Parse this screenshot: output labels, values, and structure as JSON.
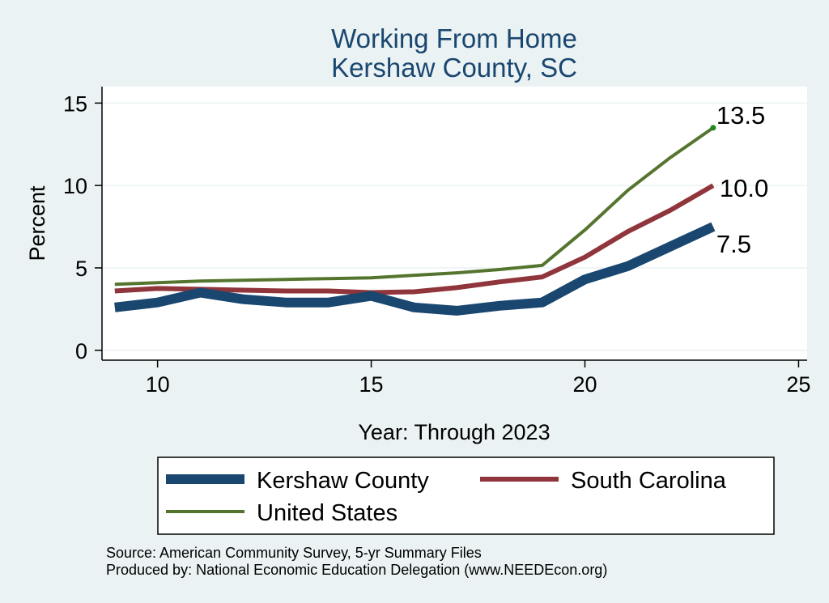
{
  "chart_data": {
    "type": "line",
    "title": "Working From Home",
    "subtitle": "Kershaw County, SC",
    "xlabel": "Year: Through 2023",
    "ylabel": "Percent",
    "xlim": [
      8.7,
      25.2
    ],
    "ylim": [
      -0.6,
      16
    ],
    "xticks": [
      10,
      15,
      20,
      25
    ],
    "yticks": [
      0,
      5,
      10,
      15
    ],
    "grid": true,
    "legend_position": "bottom",
    "x": [
      9,
      10,
      11,
      12,
      13,
      14,
      15,
      16,
      17,
      18,
      19,
      20,
      21,
      22,
      23
    ],
    "series": [
      {
        "name": "Kershaw County",
        "color": "#1a476f",
        "values": [
          2.6,
          2.9,
          3.5,
          3.1,
          2.9,
          2.9,
          3.3,
          2.6,
          2.4,
          2.7,
          2.9,
          4.3,
          5.1,
          6.3,
          7.5
        ],
        "end_label": "7.5"
      },
      {
        "name": "South Carolina",
        "color": "#90353b",
        "values": [
          3.6,
          3.75,
          3.7,
          3.65,
          3.6,
          3.6,
          3.5,
          3.55,
          3.8,
          4.15,
          4.45,
          5.65,
          7.2,
          8.5,
          10.0
        ],
        "end_label": "10.0"
      },
      {
        "name": "United States",
        "color": "#55752f",
        "values": [
          4.0,
          4.1,
          4.2,
          4.25,
          4.3,
          4.35,
          4.4,
          4.55,
          4.7,
          4.9,
          5.15,
          7.3,
          9.7,
          11.7,
          13.5
        ],
        "end_label": "13.5"
      }
    ],
    "notes": [
      "Source: American Community Survey, 5-yr Summary Files",
      "Produced by: National Economic Education Delegation (www.NEEDEcon.org)"
    ]
  }
}
